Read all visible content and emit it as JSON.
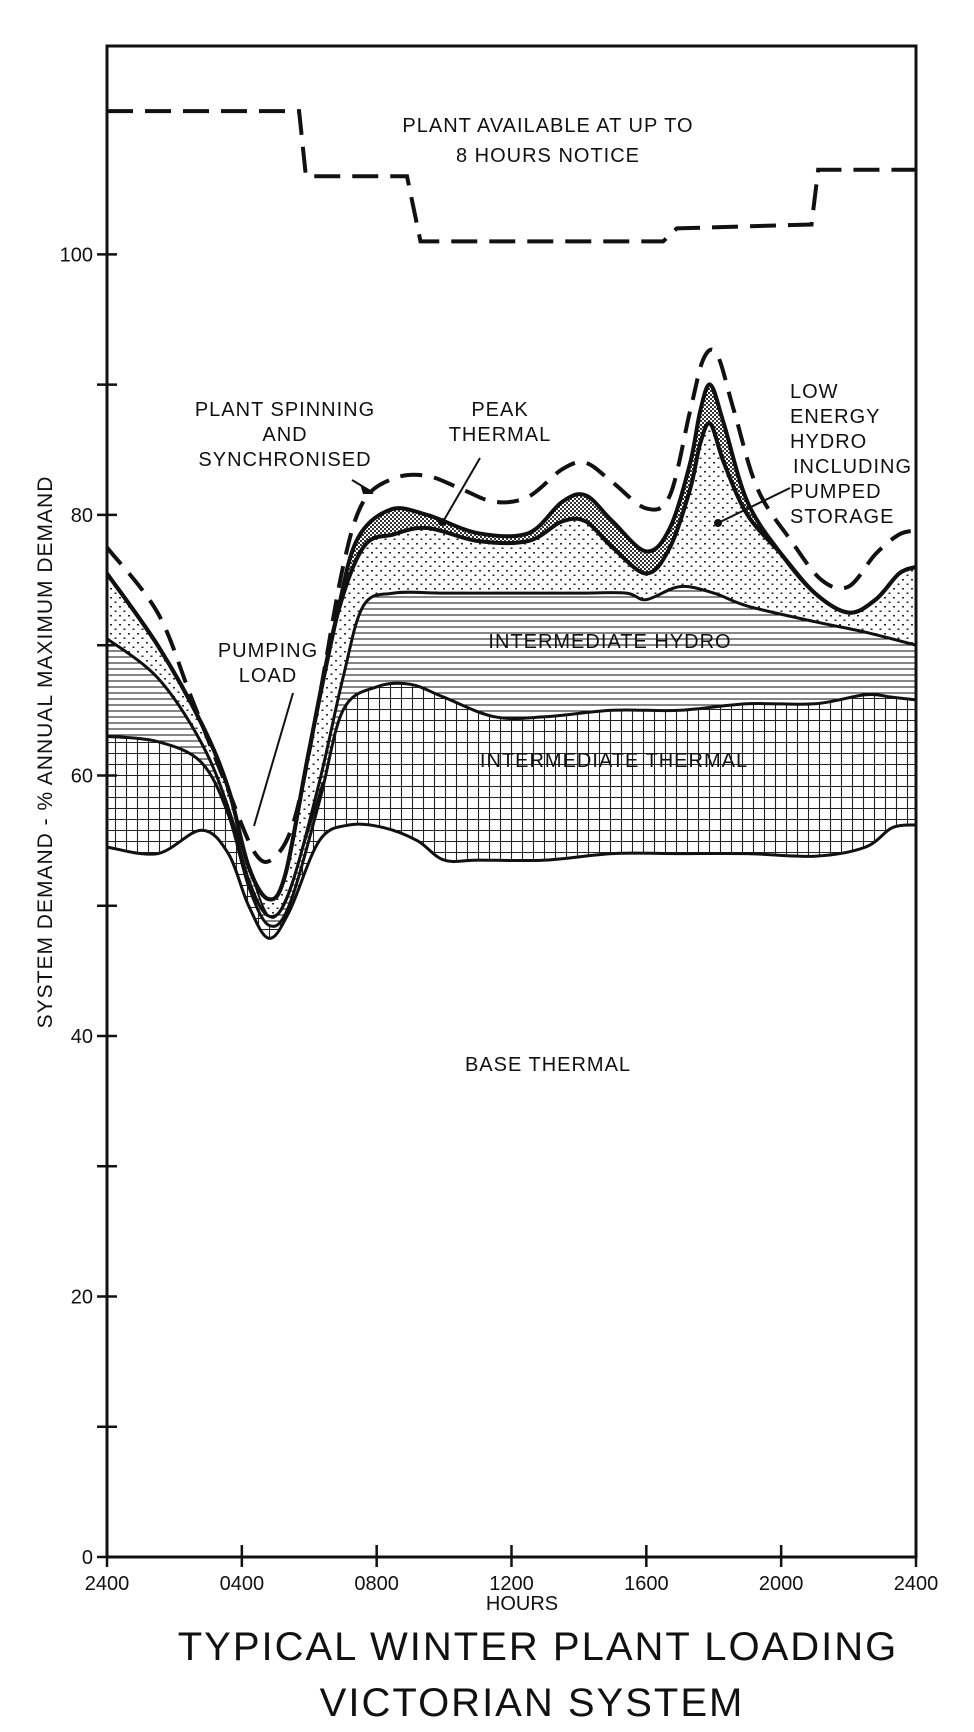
{
  "chart_data": {
    "type": "area",
    "title": "TYPICAL  WINTER  PLANT  LOADING",
    "subtitle": "VICTORIAN  SYSTEM",
    "xlabel": "HOURS",
    "ylabel": "SYSTEM  DEMAND - % ANNUAL MAXIMUM DEMAND",
    "xlim": [
      0,
      24
    ],
    "ylim": [
      0,
      116
    ],
    "x_ticks": [
      {
        "value": 0,
        "label": "2400"
      },
      {
        "value": 4,
        "label": "0400"
      },
      {
        "value": 8,
        "label": "0800"
      },
      {
        "value": 12,
        "label": "1200"
      },
      {
        "value": 16,
        "label": "1600"
      },
      {
        "value": 20,
        "label": "2000"
      },
      {
        "value": 24,
        "label": "2400"
      }
    ],
    "y_ticks": [
      {
        "value": 0,
        "label": "0"
      },
      {
        "value": 10,
        "label": ""
      },
      {
        "value": 20,
        "label": "20"
      },
      {
        "value": 30,
        "label": ""
      },
      {
        "value": 40,
        "label": "40"
      },
      {
        "value": 50,
        "label": ""
      },
      {
        "value": 60,
        "label": "60"
      },
      {
        "value": 70,
        "label": ""
      },
      {
        "value": 80,
        "label": "80"
      },
      {
        "value": 90,
        "label": ""
      },
      {
        "value": 100,
        "label": "100"
      }
    ],
    "grid": false,
    "legend": "none",
    "series": [
      {
        "name": "BASE THERMAL",
        "points": [
          [
            0,
            54.5
          ],
          [
            1.5,
            54
          ],
          [
            2.8,
            55.8
          ],
          [
            3.6,
            54
          ],
          [
            4.2,
            50
          ],
          [
            4.8,
            47.5
          ],
          [
            5.4,
            49.5
          ],
          [
            6.3,
            55
          ],
          [
            7.2,
            56.2
          ],
          [
            8.2,
            56
          ],
          [
            9.2,
            55
          ],
          [
            10,
            53.5
          ],
          [
            11,
            53.5
          ],
          [
            13,
            53.5
          ],
          [
            15,
            54
          ],
          [
            17,
            54
          ],
          [
            19,
            54
          ],
          [
            21,
            53.8
          ],
          [
            22.5,
            54.5
          ],
          [
            23.3,
            56
          ],
          [
            24,
            56.2
          ]
        ]
      },
      {
        "name": "INTERMEDIATE  THERMAL",
        "points": [
          [
            0,
            63
          ],
          [
            1.5,
            62.6
          ],
          [
            2.8,
            61
          ],
          [
            3.6,
            57
          ],
          [
            4.2,
            51.5
          ],
          [
            4.8,
            48.5
          ],
          [
            5.4,
            50
          ],
          [
            6.3,
            58
          ],
          [
            7,
            65
          ],
          [
            8,
            66.8
          ],
          [
            9,
            67
          ],
          [
            10,
            66
          ],
          [
            11.5,
            64.5
          ],
          [
            13,
            64.5
          ],
          [
            15,
            65
          ],
          [
            17,
            65
          ],
          [
            19,
            65.5
          ],
          [
            21,
            65.5
          ],
          [
            22.5,
            66.2
          ],
          [
            23.3,
            66
          ],
          [
            24,
            65.8
          ]
        ]
      },
      {
        "name": "INTERMEDIATE  HYDRO",
        "points": [
          [
            0,
            70.5
          ],
          [
            1.5,
            67.5
          ],
          [
            2.8,
            62.5
          ],
          [
            3.6,
            57.5
          ],
          [
            4.2,
            52
          ],
          [
            4.8,
            49.2
          ],
          [
            5.4,
            51
          ],
          [
            6.3,
            59.5
          ],
          [
            7,
            67.5
          ],
          [
            7.6,
            73
          ],
          [
            8.5,
            74
          ],
          [
            10,
            74
          ],
          [
            12,
            74
          ],
          [
            14,
            74
          ],
          [
            15.4,
            74
          ],
          [
            16,
            73.5
          ],
          [
            17,
            74.5
          ],
          [
            18,
            74
          ],
          [
            19,
            73
          ],
          [
            21,
            71.8
          ],
          [
            22.5,
            71
          ],
          [
            24,
            70
          ]
        ]
      },
      {
        "name": "LOW ENERGY HYDRO INCLUDING PUMPED STORAGE",
        "points": [
          [
            0,
            75.5
          ],
          [
            1.5,
            70
          ],
          [
            2.8,
            64
          ],
          [
            3.6,
            59
          ],
          [
            4.2,
            53
          ],
          [
            4.8,
            50.5
          ],
          [
            5.3,
            52.5
          ],
          [
            6,
            62
          ],
          [
            6.8,
            72
          ],
          [
            7.6,
            77.5
          ],
          [
            8.5,
            78.5
          ],
          [
            9.5,
            79
          ],
          [
            11,
            78
          ],
          [
            12.5,
            78
          ],
          [
            13.5,
            79.5
          ],
          [
            14.2,
            79.5
          ],
          [
            15,
            77.5
          ],
          [
            16,
            75.5
          ],
          [
            16.7,
            77.5
          ],
          [
            17.3,
            82
          ],
          [
            17.6,
            85.5
          ],
          [
            17.9,
            87
          ],
          [
            18.3,
            84
          ],
          [
            19,
            80
          ],
          [
            20,
            77
          ],
          [
            21,
            74
          ],
          [
            22,
            72.5
          ],
          [
            22.8,
            73.5
          ],
          [
            23.5,
            75.5
          ],
          [
            24,
            76
          ]
        ]
      },
      {
        "name": "PEAK THERMAL",
        "points": [
          [
            0,
            75.5
          ],
          [
            1.5,
            70
          ],
          [
            2.8,
            64
          ],
          [
            3.6,
            59
          ],
          [
            4.2,
            53
          ],
          [
            4.8,
            50.5
          ],
          [
            5.3,
            52.5
          ],
          [
            6,
            62
          ],
          [
            6.8,
            72
          ],
          [
            7.4,
            78
          ],
          [
            8.4,
            80.4
          ],
          [
            9.5,
            80
          ],
          [
            11,
            78.6
          ],
          [
            12.5,
            78.6
          ],
          [
            13.5,
            81
          ],
          [
            14.2,
            81.5
          ],
          [
            15,
            79.5
          ],
          [
            16,
            77.2
          ],
          [
            16.7,
            79
          ],
          [
            17.3,
            84
          ],
          [
            17.6,
            88
          ],
          [
            17.9,
            90
          ],
          [
            18.3,
            87
          ],
          [
            19,
            81
          ],
          [
            20,
            77
          ],
          [
            21,
            74
          ],
          [
            22,
            72.5
          ],
          [
            22.8,
            73.5
          ],
          [
            23.5,
            75.5
          ],
          [
            24,
            76
          ]
        ]
      },
      {
        "name": "PUMPING LOAD",
        "points": [
          [
            0,
            70.5
          ],
          [
            1.5,
            67.5
          ],
          [
            2.8,
            62.5
          ],
          [
            3.6,
            57.5
          ],
          [
            4.2,
            53
          ],
          [
            4.8,
            49.2
          ],
          [
            5.3,
            50.5
          ],
          [
            6,
            56
          ],
          [
            6.4,
            59.5
          ]
        ]
      },
      {
        "name": "PLANT SPINNING AND SYNCHRONISED",
        "points": [
          [
            0,
            77.5
          ],
          [
            1.5,
            72.5
          ],
          [
            2.5,
            66
          ],
          [
            3.5,
            59.5
          ],
          [
            4.4,
            54
          ],
          [
            5,
            53.8
          ],
          [
            5.6,
            57
          ],
          [
            6.3,
            66
          ],
          [
            7,
            76
          ],
          [
            7.6,
            81
          ],
          [
            8.5,
            82.8
          ],
          [
            9.5,
            83
          ],
          [
            10.5,
            82
          ],
          [
            11.5,
            81
          ],
          [
            12.5,
            81.4
          ],
          [
            13.5,
            83.5
          ],
          [
            14.2,
            84
          ],
          [
            15,
            82.5
          ],
          [
            16,
            80.5
          ],
          [
            16.7,
            81.5
          ],
          [
            17.3,
            88
          ],
          [
            17.7,
            92
          ],
          [
            18.1,
            92.3
          ],
          [
            18.6,
            88
          ],
          [
            19.3,
            82
          ],
          [
            20.3,
            78
          ],
          [
            21.2,
            75
          ],
          [
            22,
            74.5
          ],
          [
            22.8,
            77
          ],
          [
            23.5,
            78.5
          ],
          [
            24,
            78.8
          ]
        ]
      },
      {
        "name": "PLANT AVAILABLE AT UP TO 8 HOURS NOTICE",
        "points": [
          [
            0,
            111
          ],
          [
            5.7,
            111
          ],
          [
            5.9,
            106
          ],
          [
            8.9,
            106
          ],
          [
            9.3,
            101
          ],
          [
            16.5,
            101
          ],
          [
            16.9,
            102
          ],
          [
            20.9,
            102.3
          ],
          [
            21.1,
            106.5
          ],
          [
            24,
            106.5
          ]
        ]
      }
    ],
    "annotations": [
      {
        "id": "available",
        "lines": [
          "PLANT AVAILABLE AT UP TO",
          "8 HOURS NOTICE"
        ]
      },
      {
        "id": "spinning",
        "lines": [
          "PLANT SPINNING",
          "AND",
          "SYNCHRONISED"
        ]
      },
      {
        "id": "peak",
        "lines": [
          "PEAK",
          "THERMAL"
        ]
      },
      {
        "id": "lowenergy",
        "lines": [
          "LOW",
          "ENERGY",
          "HYDRO",
          "INCLUDING",
          "PUMPED",
          "STORAGE"
        ]
      },
      {
        "id": "pumping",
        "lines": [
          "PUMPING",
          "LOAD"
        ]
      },
      {
        "id": "inthydro",
        "lines": [
          "INTERMEDIATE  HYDRO"
        ]
      },
      {
        "id": "intthermal",
        "lines": [
          "INTERMEDIATE  THERMAL"
        ]
      },
      {
        "id": "basethermal",
        "lines": [
          "BASE   THERMAL"
        ]
      }
    ]
  }
}
